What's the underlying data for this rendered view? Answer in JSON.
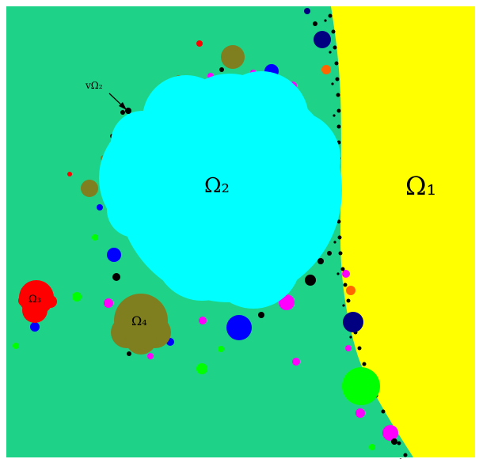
{
  "colors": {
    "background": "#1ed387",
    "omega1": "#ffff00",
    "omega2": "#00ffff",
    "omega3": "#ff0000",
    "omega4": "#7f7f1f",
    "blue": "#0000ff",
    "navy": "#000080",
    "magenta": "#ff00ff",
    "orange": "#ff6600",
    "green": "#00ff00",
    "black": "#000000"
  },
  "labels": {
    "omega1": "Ω₁",
    "omega2": "Ω₂",
    "omega3": "Ω₃",
    "omega4": "Ω₄",
    "point": "vΩ₂"
  }
}
